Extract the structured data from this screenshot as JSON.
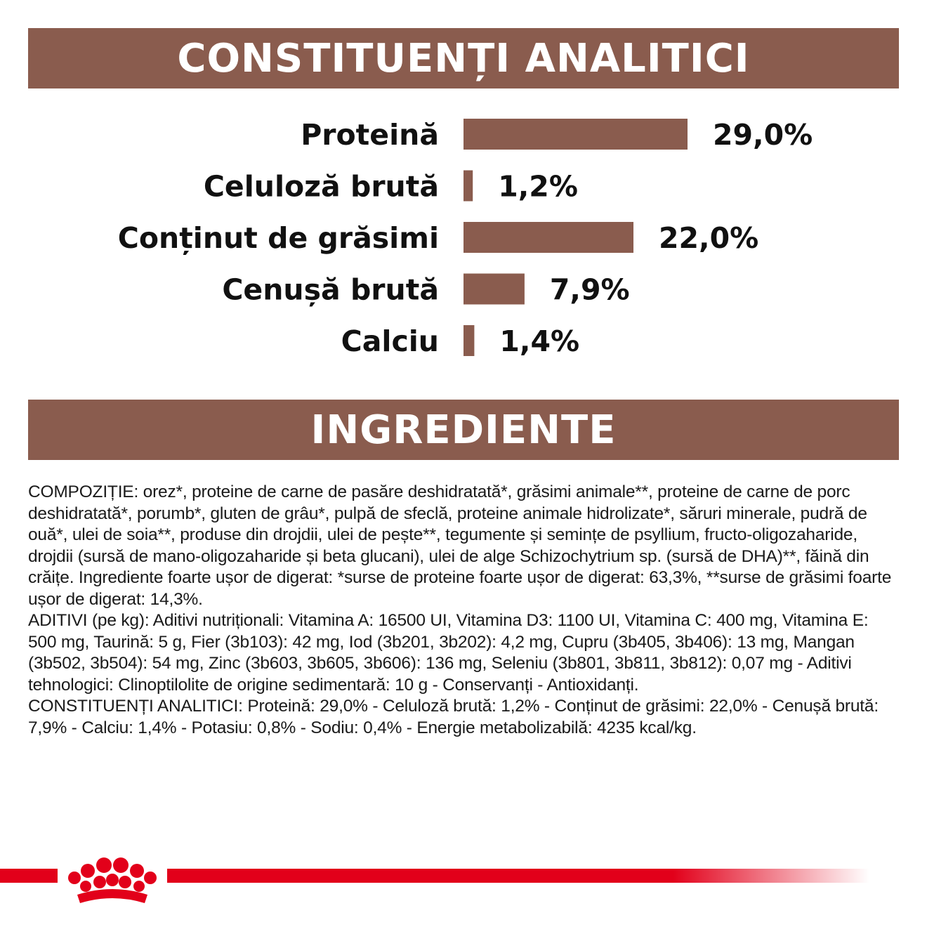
{
  "colors": {
    "banner": "#8a5c4e",
    "bar": "#8a5c4e",
    "brand_red": "#e2001a"
  },
  "analytic_title": "CONSTITUENȚI ANALITICI",
  "ingredients_title": "INGREDIENTE",
  "chart_data": {
    "type": "bar",
    "orientation": "horizontal",
    "title": "CONSTITUENȚI ANALITICI",
    "categories": [
      "Proteină",
      "Celuloză brută",
      "Conținut de grăsimi",
      "Cenușă brută",
      "Calciu"
    ],
    "values": [
      29.0,
      1.2,
      22.0,
      7.9,
      1.4
    ],
    "value_labels": [
      "29,0%",
      "1,2%",
      "22,0%",
      "7,9%",
      "1,4%"
    ],
    "unit": "%",
    "grid": false,
    "legend": "none"
  },
  "ingredients_text": {
    "composition": "COMPOZIȚIE: orez*, proteine de carne de pasăre deshidratată*, grăsimi animale**, proteine de carne de porc deshidratată*, porumb*, gluten de grâu*, pulpă de sfeclă, proteine animale hidrolizate*, săruri minerale, pudră de ouă*, ulei de soia**, produse din drojdii, ulei de pește**, tegumente și semințe de psyllium, fructo-oligozaharide, drojdii (sursă de mano-oligozaharide și beta glucani), ulei de alge Schizochytrium sp. (sursă de DHA)**, făină din crăițe. Ingrediente foarte ușor de digerat: *surse de proteine foarte ușor de digerat: 63,3%, **surse de grăsimi foarte ușor de digerat: 14,3%.",
    "additives": "ADITIVI (pe kg): Aditivi nutriționali: Vitamina A: 16500 UI, Vitamina D3: 1100 UI, Vitamina C: 400 mg, Vitamina E: 500 mg, Taurină: 5 g, Fier (3b103): 42 mg, Iod (3b201, 3b202): 4,2 mg, Cupru (3b405, 3b406): 13 mg, Mangan (3b502, 3b504): 54 mg, Zinc (3b603, 3b605, 3b606): 136 mg, Seleniu (3b801, 3b811, 3b812): 0,07 mg - Aditivi tehnologici: Clinoptilolite de origine sedimentară: 10 g - Conservanți - Antioxidanți.",
    "analytic": "CONSTITUENȚI ANALITICI: Proteină: 29,0% - Celuloză brută: 1,2% - Conținut de grăsimi: 22,0% - Cenușă brută: 7,9% - Calciu: 1,4% - Potasiu: 0,8% - Sodiu: 0,4% - Energie metabolizabilă: 4235 kcal/kg."
  },
  "logo": {
    "icon": "crown-icon"
  }
}
